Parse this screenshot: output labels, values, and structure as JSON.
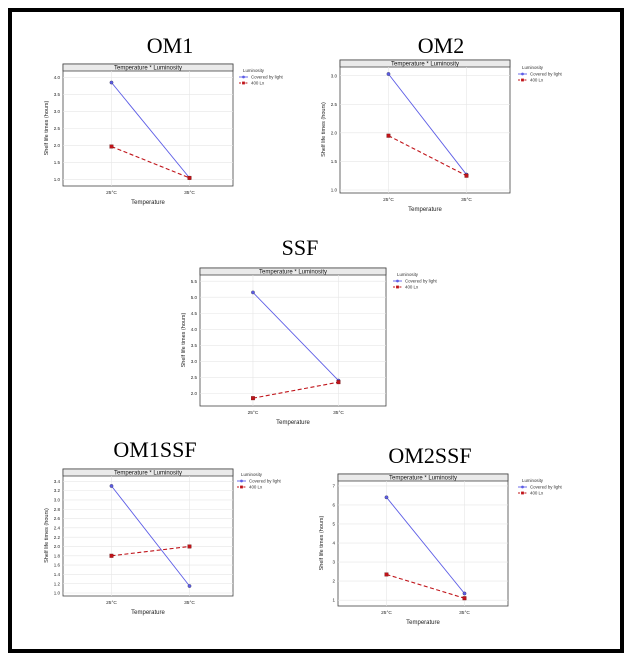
{
  "colors": {
    "covered": "#5c5ce6",
    "lux": "#c0141a",
    "grid": "#e6e6e6"
  },
  "chart_data": [
    {
      "type": "line",
      "panel_title": "OM1",
      "title": "Temperature * Luminosity",
      "xlabel": "Temperature",
      "ylabel": "Shelf life times (hours)",
      "categories": [
        "25°C",
        "35°C"
      ],
      "ylim": [
        0.9,
        4.1
      ],
      "yticks": [
        "1.0",
        "1.5",
        "2.0",
        "2.5",
        "3.0",
        "3.5",
        "4.0"
      ],
      "legend_title": "Luminosity",
      "legend_position": "right",
      "series": [
        {
          "name": "Covered by light",
          "values": [
            3.85,
            1.05
          ]
        },
        {
          "name": "400 Lx",
          "values": [
            1.97,
            1.05
          ]
        }
      ]
    },
    {
      "type": "line",
      "panel_title": "OM2",
      "title": "Temperature * Luminosity",
      "xlabel": "Temperature",
      "ylabel": "Shelf life times (hours)",
      "categories": [
        "25°C",
        "35°C"
      ],
      "ylim": [
        1.0,
        3.1
      ],
      "yticks": [
        "1.0",
        "1.5",
        "2.0",
        "2.5",
        "3.0"
      ],
      "legend_title": "Luminosity",
      "legend_position": "right",
      "series": [
        {
          "name": "Covered by light",
          "values": [
            3.03,
            1.27
          ]
        },
        {
          "name": "400 Lx",
          "values": [
            1.95,
            1.25
          ]
        }
      ]
    },
    {
      "type": "line",
      "panel_title": "SSF",
      "title": "Temperature * Luminosity",
      "xlabel": "Temperature",
      "ylabel": "Shelf life times (hours)",
      "categories": [
        "25°C",
        "35°C"
      ],
      "ylim": [
        1.7,
        5.6
      ],
      "yticks": [
        "2.0",
        "2.5",
        "3.0",
        "3.5",
        "4.0",
        "4.5",
        "5.0",
        "5.5"
      ],
      "legend_title": "Luminosity",
      "legend_position": "right",
      "series": [
        {
          "name": "Covered by light",
          "values": [
            5.15,
            2.4
          ]
        },
        {
          "name": "400 Lx",
          "values": [
            1.85,
            2.35
          ]
        }
      ]
    },
    {
      "type": "line",
      "panel_title": "OM1SSF",
      "title": "Temperature * Luminosity",
      "xlabel": "Temperature",
      "ylabel": "Shelf life times (hours)",
      "categories": [
        "25°C",
        "35°C"
      ],
      "ylim": [
        1.0,
        3.45
      ],
      "yticks": [
        "1.0",
        "1.2",
        "1.4",
        "1.6",
        "1.8",
        "2.0",
        "2.2",
        "2.4",
        "2.6",
        "2.8",
        "3.0",
        "3.2",
        "3.4"
      ],
      "legend_title": "Luminosity",
      "legend_position": "right",
      "series": [
        {
          "name": "Covered by light",
          "values": [
            3.3,
            1.15
          ]
        },
        {
          "name": "400 Lx",
          "values": [
            1.8,
            2.0
          ]
        }
      ]
    },
    {
      "type": "line",
      "panel_title": "OM2SSF",
      "title": "Temperature * Luminosity",
      "xlabel": "Temperature",
      "ylabel": "Shelf life times (hours)",
      "categories": [
        "25°C",
        "35°C"
      ],
      "ylim": [
        0.85,
        7.1
      ],
      "yticks": [
        "1",
        "2",
        "3",
        "4",
        "5",
        "6",
        "7"
      ],
      "legend_title": "Luminosity",
      "legend_position": "right",
      "series": [
        {
          "name": "Covered by light",
          "values": [
            6.4,
            1.35
          ]
        },
        {
          "name": "400 Lx",
          "values": [
            2.35,
            1.1
          ]
        }
      ]
    }
  ]
}
